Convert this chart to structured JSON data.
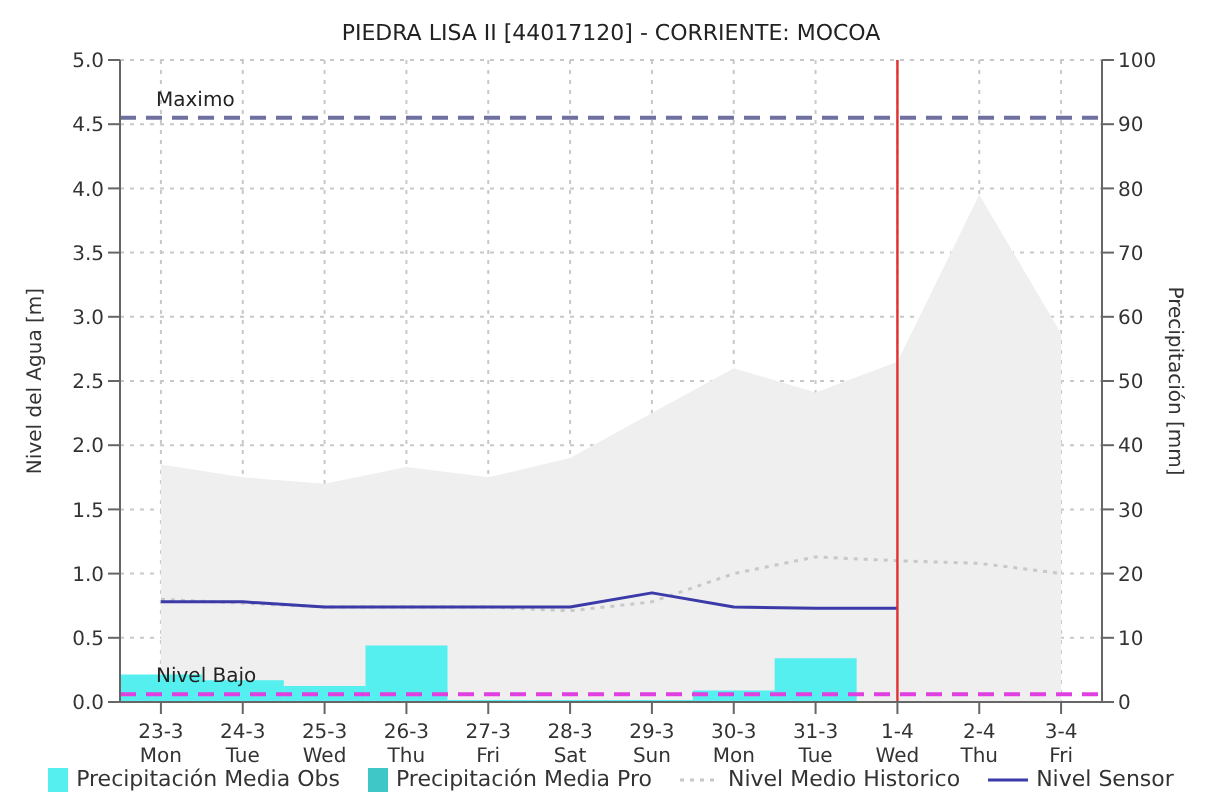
{
  "chart_data": {
    "type": "line",
    "title": "PIEDRA LISA II  [44017120] - CORRIENTE: MOCOA",
    "ylabel": "Nivel del Agua [m]",
    "y2label": "Precipitación [mm]",
    "categories": [
      "23-3\nMon",
      "24-3\nTue",
      "25-3\nWed",
      "26-3\nThu",
      "27-3\nFri",
      "28-3\nSat",
      "29-3\nSun",
      "30-3\nMon",
      "31-3\nTue",
      "1-4\nWed",
      "2-4\nThu",
      "3-4\nFri"
    ],
    "ylim": [
      0,
      5
    ],
    "yticks": [
      {
        "value": 0,
        "label": "0.0"
      },
      0.5,
      {
        "value": 1,
        "label": "1.0"
      },
      1.5,
      {
        "value": 2,
        "label": "2.0"
      },
      2.5,
      {
        "value": 3,
        "label": "3.0"
      },
      3.5,
      {
        "value": 4,
        "label": "4.0"
      },
      4.5,
      {
        "value": 5,
        "label": "5.0"
      }
    ],
    "y2lim": [
      0,
      100
    ],
    "y2ticks": [
      0,
      10,
      20,
      30,
      40,
      50,
      60,
      70,
      80,
      90,
      100
    ],
    "grid": true,
    "legend": "bottom",
    "marker": "none",
    "stacked": true,
    "series": [
      {
        "type": "area",
        "color": "#efefef",
        "values": [
          1.85,
          1.75,
          1.7,
          1.83,
          1.75,
          1.9,
          2.25,
          2.6,
          2.41,
          2.65,
          3.95,
          2.87
        ]
      },
      {
        "type": "bar",
        "name": "Precipitación Media Obs",
        "color": "#55efef",
        "axis": "y2",
        "values": [
          4.3,
          3.4,
          2.5,
          8.8,
          0.3,
          0.3,
          0.3,
          1.8,
          6.8,
          null,
          null,
          null
        ]
      },
      {
        "type": "bar",
        "name": "Precipitación Media Pro",
        "color": "#3fc6c6",
        "axis": "y2",
        "values": [
          null,
          null,
          null,
          null,
          null,
          null,
          null,
          null,
          null,
          null,
          null,
          null
        ]
      },
      {
        "name": "Nivel Medio Historico",
        "color": "#c8c8c8",
        "line_style": "dotted",
        "values": [
          0.8,
          0.77,
          0.74,
          0.74,
          0.74,
          0.71,
          0.78,
          1.0,
          1.13,
          1.1,
          1.08,
          1.0
        ]
      },
      {
        "name": "Nivel Sensor",
        "color": "#3a3aa8",
        "line_style": "solid",
        "values": [
          0.78,
          0.78,
          0.74,
          0.74,
          0.74,
          0.74,
          0.85,
          0.74,
          0.73,
          0.73,
          null,
          null
        ]
      }
    ],
    "ref_lines": [
      {
        "axis": "y",
        "value": 4.55,
        "label": "Maximo",
        "color": "#7070a0",
        "line_style": "dashed"
      },
      {
        "axis": "y",
        "value": 0.06,
        "label": "Nivel Bajo",
        "color": "#e040e0",
        "line_style": "dashed"
      },
      {
        "axis": "x",
        "value": "1-4\nWed",
        "label": null,
        "color": "#e03030",
        "line_style": "solid"
      }
    ]
  }
}
